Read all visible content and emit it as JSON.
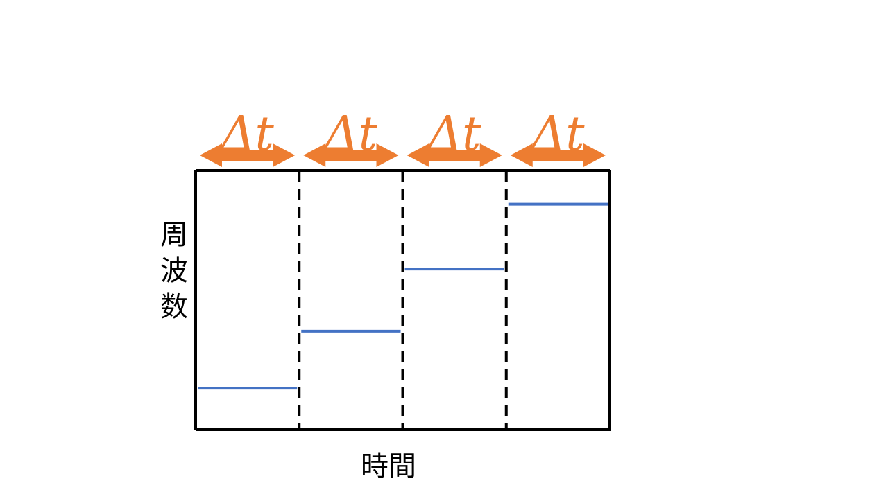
{
  "colors": {
    "frame": "#000000",
    "step_line": "#4472C4",
    "arrow": "#ED7D31"
  },
  "y_label": "周波数",
  "x_label": "時間",
  "intervals": [
    {
      "label": "Δt",
      "level": 0.16
    },
    {
      "label": "Δt",
      "level": 0.38
    },
    {
      "label": "Δt",
      "level": 0.62
    },
    {
      "label": "Δt",
      "level": 0.87
    }
  ]
}
